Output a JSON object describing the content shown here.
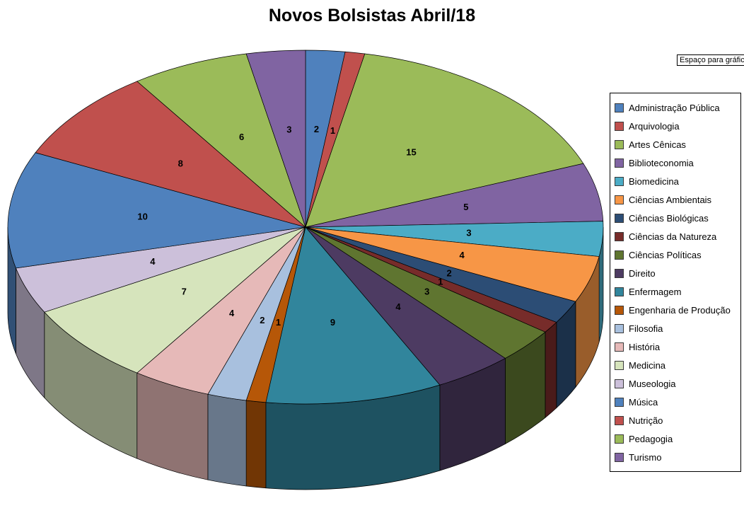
{
  "title": "Novos Bolsistas Abril/18",
  "textbox": {
    "label": "Espaço para gráfic"
  },
  "chart_data": {
    "type": "pie",
    "title": "Novos Bolsistas Abril/18",
    "style": "3d-pie",
    "legend_position": "right",
    "direction": "clockwise",
    "start_angle_deg": 0,
    "total": 94,
    "categories": [
      "Administração Pública",
      "Arquivologia",
      "Artes Cênicas",
      "Biblioteconomia",
      "Biomedicina",
      "Ciências Ambientais",
      "Ciências Biológicas",
      "Ciências da Natureza",
      "Ciências Políticas",
      "Direito",
      "Enfermagem",
      "Engenharia de Produção",
      "Filosofia",
      "História",
      "Medicina",
      "Museologia",
      "Música",
      "Nutrição",
      "Pedagogia",
      "Turismo"
    ],
    "values": [
      2,
      1,
      15,
      5,
      3,
      4,
      2,
      1,
      3,
      4,
      9,
      1,
      2,
      4,
      7,
      4,
      10,
      8,
      6,
      3
    ],
    "colors": [
      "#4F81BD",
      "#C0504D",
      "#9BBB59",
      "#8064A2",
      "#4BACC6",
      "#F79646",
      "#2C4D75",
      "#772C2A",
      "#5F7530",
      "#4D3B62",
      "#31859C",
      "#B65708",
      "#A8C0DE",
      "#E6B9B8",
      "#D6E4BC",
      "#CCC0DA",
      "#4F81BD",
      "#C0504D",
      "#9BBB59",
      "#8064A2"
    ]
  }
}
